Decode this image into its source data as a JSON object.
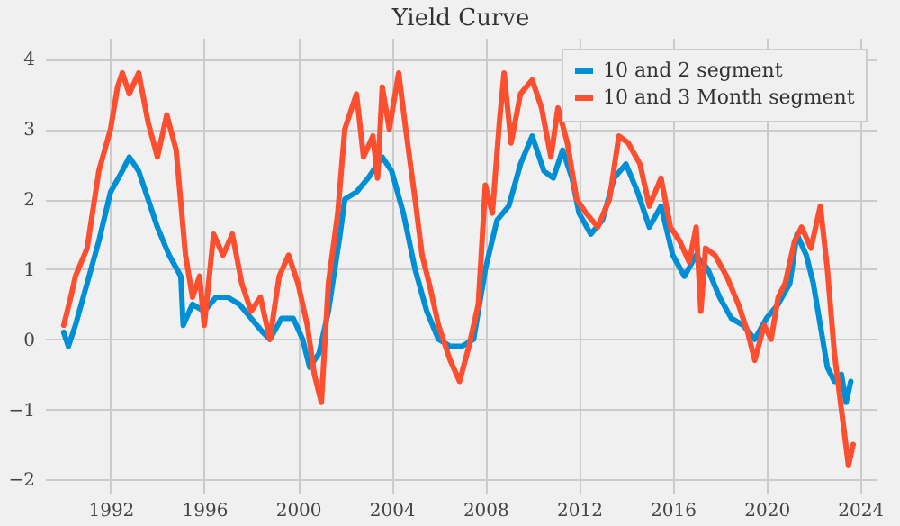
{
  "chart_data": {
    "type": "line",
    "title": "Yield Curve",
    "legend": "top right",
    "grid": true,
    "line_style": "solid",
    "xlim": [
      1989.2,
      2024.7
    ],
    "xticks": [
      1992,
      1996,
      2000,
      2004,
      2008,
      2012,
      2016,
      2020,
      2024
    ],
    "ylim": [
      -2.2,
      4.3
    ],
    "yticks": [
      -2,
      -1,
      0,
      1,
      2,
      3,
      4
    ],
    "series": [
      {
        "name": "10 and 2 segment",
        "color": "#008fd5",
        "x": [
          1990.0,
          1990.2,
          1990.5,
          1991.0,
          1991.5,
          1992.0,
          1992.5,
          1992.8,
          1993.2,
          1993.6,
          1994.0,
          1994.5,
          1995.0,
          1995.1,
          1995.5,
          1996.0,
          1996.5,
          1997.0,
          1997.5,
          1998.0,
          1998.5,
          1998.8,
          1999.3,
          1999.8,
          2000.2,
          2000.5,
          2000.9,
          2001.3,
          2001.8,
          2002.0,
          2002.5,
          2003.0,
          2003.6,
          2004.0,
          2004.5,
          2005.0,
          2005.5,
          2006.0,
          2006.5,
          2007.0,
          2007.5,
          2008.0,
          2008.5,
          2009.0,
          2009.5,
          2010.0,
          2010.5,
          2010.9,
          2011.3,
          2011.7,
          2012.0,
          2012.5,
          2013.0,
          2013.5,
          2014.0,
          2014.5,
          2015.0,
          2015.5,
          2016.0,
          2016.5,
          2017.0,
          2017.5,
          2018.0,
          2018.5,
          2019.0,
          2019.5,
          2020.0,
          2020.5,
          2021.0,
          2021.3,
          2021.7,
          2022.0,
          2022.3,
          2022.6,
          2022.9,
          2023.2,
          2023.4,
          2023.6
        ],
        "values": [
          0.1,
          -0.1,
          0.2,
          0.8,
          1.4,
          2.1,
          2.4,
          2.6,
          2.4,
          2.0,
          1.6,
          1.2,
          0.9,
          0.2,
          0.5,
          0.4,
          0.6,
          0.6,
          0.5,
          0.3,
          0.1,
          0.0,
          0.3,
          0.3,
          0.0,
          -0.4,
          -0.2,
          0.4,
          1.5,
          2.0,
          2.1,
          2.3,
          2.6,
          2.4,
          1.8,
          1.0,
          0.4,
          0.0,
          -0.1,
          -0.1,
          0.0,
          1.0,
          1.7,
          1.9,
          2.5,
          2.9,
          2.4,
          2.3,
          2.7,
          2.3,
          1.8,
          1.5,
          1.7,
          2.3,
          2.5,
          2.1,
          1.6,
          1.9,
          1.2,
          0.9,
          1.2,
          1.0,
          0.6,
          0.3,
          0.2,
          0.0,
          0.3,
          0.5,
          0.8,
          1.5,
          1.2,
          0.8,
          0.2,
          -0.4,
          -0.6,
          -0.5,
          -0.9,
          -0.6
        ]
      },
      {
        "name": "10 and 3 Month segment",
        "color": "#fc4f30",
        "x": [
          1990.0,
          1990.3,
          1990.5,
          1991.0,
          1991.5,
          1992.0,
          1992.3,
          1992.5,
          1992.8,
          1993.2,
          1993.6,
          1994.0,
          1994.4,
          1994.8,
          1995.2,
          1995.5,
          1995.8,
          1996.0,
          1996.4,
          1996.8,
          1997.2,
          1997.6,
          1998.0,
          1998.4,
          1998.8,
          1999.2,
          1999.6,
          2000.0,
          2000.4,
          2000.7,
          2001.0,
          2001.3,
          2001.7,
          2002.0,
          2002.5,
          2002.8,
          2003.2,
          2003.4,
          2003.6,
          2003.9,
          2004.3,
          2004.6,
          2005.0,
          2005.3,
          2005.6,
          2006.0,
          2006.5,
          2006.9,
          2007.3,
          2007.7,
          2008.0,
          2008.3,
          2008.6,
          2008.8,
          2009.1,
          2009.5,
          2010.0,
          2010.4,
          2010.8,
          2011.1,
          2011.5,
          2011.9,
          2012.3,
          2012.8,
          2013.3,
          2013.7,
          2014.1,
          2014.6,
          2015.0,
          2015.5,
          2015.9,
          2016.3,
          2016.7,
          2017.0,
          2017.2,
          2017.4,
          2017.8,
          2018.3,
          2018.8,
          2019.2,
          2019.5,
          2019.9,
          2020.2,
          2020.5,
          2020.8,
          2021.2,
          2021.5,
          2021.9,
          2022.3,
          2022.6,
          2022.9,
          2023.2,
          2023.5,
          2023.7
        ],
        "values": [
          0.2,
          0.6,
          0.9,
          1.3,
          2.4,
          3.0,
          3.6,
          3.8,
          3.5,
          3.8,
          3.1,
          2.6,
          3.2,
          2.7,
          1.2,
          0.6,
          0.9,
          0.2,
          1.5,
          1.2,
          1.5,
          0.8,
          0.4,
          0.6,
          0.0,
          0.9,
          1.2,
          0.8,
          0.2,
          -0.5,
          -0.9,
          0.8,
          1.8,
          3.0,
          3.5,
          2.6,
          2.9,
          2.3,
          3.6,
          3.0,
          3.8,
          3.0,
          2.0,
          1.2,
          0.8,
          0.2,
          -0.3,
          -0.6,
          -0.1,
          0.5,
          2.2,
          1.8,
          3.1,
          3.8,
          2.8,
          3.5,
          3.7,
          3.3,
          2.6,
          3.3,
          2.8,
          2.0,
          1.8,
          1.6,
          2.0,
          2.9,
          2.8,
          2.5,
          1.9,
          2.3,
          1.6,
          1.4,
          1.1,
          1.6,
          0.4,
          1.3,
          1.2,
          0.9,
          0.5,
          0.1,
          -0.3,
          0.2,
          0.0,
          0.6,
          0.8,
          1.4,
          1.6,
          1.3,
          1.9,
          1.0,
          -0.2,
          -1.0,
          -1.8,
          -1.5
        ]
      }
    ]
  }
}
